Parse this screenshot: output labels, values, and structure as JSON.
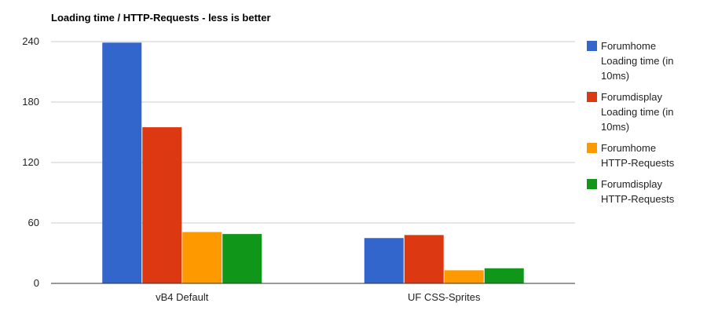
{
  "chart_data": {
    "type": "bar",
    "title": "Loading time / HTTP-Requests - less is better",
    "xlabel": "",
    "ylabel": "",
    "categories": [
      "vB4 Default",
      "UF CSS-Sprites"
    ],
    "series": [
      {
        "name": "Forumhome Loading time (in 10ms)",
        "legend_lines": [
          "Forumhome",
          "Loading time (in",
          "10ms)"
        ],
        "color": "#3366cc",
        "values": [
          239,
          45
        ]
      },
      {
        "name": "Forumdisplay Loading time (in 10ms)",
        "legend_lines": [
          "Forumdisplay",
          "Loading time (in",
          "10ms)"
        ],
        "color": "#dc3912",
        "values": [
          155,
          48
        ]
      },
      {
        "name": "Forumhome HTTP-Requests",
        "legend_lines": [
          "Forumhome",
          "HTTP-Requests"
        ],
        "color": "#ff9900",
        "values": [
          51,
          13
        ]
      },
      {
        "name": "Forumdisplay HTTP-Requests",
        "legend_lines": [
          "Forumdisplay",
          "HTTP-Requests"
        ],
        "color": "#109618",
        "values": [
          49,
          15
        ]
      }
    ],
    "yticks": [
      0,
      60,
      120,
      180,
      240
    ],
    "ylim": [
      0,
      250
    ],
    "grid": true,
    "legend_position": "right"
  }
}
